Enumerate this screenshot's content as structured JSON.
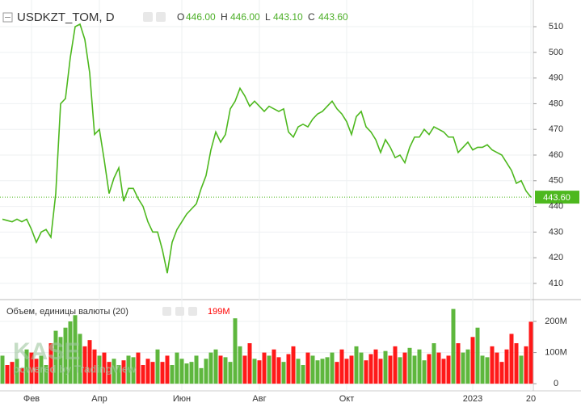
{
  "header": {
    "symbol": "USDKZT_TOM, D",
    "open_label": "O",
    "open": "446.00",
    "high_label": "H",
    "high": "446.00",
    "low_label": "L",
    "low": "443.10",
    "close_label": "C",
    "close": "443.60"
  },
  "watermark": {
    "logo": "KASE",
    "powered": "powered by TradingView"
  },
  "chart_data": [
    {
      "type": "line",
      "color": "#4db81e",
      "last_label": "443.60",
      "categories": [
        null,
        null,
        null,
        null,
        null,
        null,
        "Фев",
        null,
        null,
        null,
        null,
        null,
        null,
        null,
        null,
        null,
        null,
        null,
        null,
        null,
        "Апр",
        null,
        null,
        null,
        null,
        null,
        null,
        null,
        null,
        null,
        null,
        null,
        null,
        null,
        null,
        null,
        null,
        "Июн",
        null,
        null,
        null,
        null,
        null,
        null,
        null,
        null,
        null,
        null,
        null,
        null,
        null,
        null,
        null,
        "Авг",
        null,
        null,
        null,
        null,
        null,
        null,
        null,
        null,
        null,
        null,
        null,
        null,
        null,
        null,
        null,
        null,
        null,
        "Окт",
        null,
        null,
        null,
        null,
        null,
        null,
        null,
        null,
        null,
        null,
        null,
        null,
        null,
        null,
        null,
        null,
        null,
        null,
        null,
        null,
        null,
        null,
        null,
        null,
        null,
        "2023",
        null,
        null,
        null,
        null,
        null,
        null,
        null,
        null,
        null,
        null,
        null,
        "20"
      ],
      "values": [
        435,
        434.5,
        434,
        435,
        434,
        435,
        431,
        426,
        430,
        431,
        428,
        445,
        480,
        482,
        498,
        510,
        511,
        505,
        492,
        468,
        470,
        458,
        445,
        451,
        455,
        442,
        447,
        447,
        443,
        440,
        434,
        430,
        430,
        423,
        414,
        426,
        431,
        434,
        437,
        439,
        441,
        447,
        452,
        462,
        469,
        465,
        468,
        478,
        481,
        486,
        483,
        479,
        481,
        479,
        477,
        479,
        478,
        477,
        478,
        469,
        467,
        471,
        472,
        471,
        474,
        476,
        477,
        479,
        481,
        478,
        476,
        473,
        468,
        475,
        477,
        471,
        469,
        466,
        461,
        466,
        463,
        459,
        460,
        457,
        463,
        467,
        467,
        470,
        468,
        471,
        470,
        469,
        467,
        467,
        461,
        463,
        465,
        462,
        463,
        463,
        464,
        462,
        461,
        460,
        457,
        454,
        449,
        450,
        446,
        443.6
      ],
      "ylim": [
        404,
        520.4
      ],
      "yticks": [
        410,
        420,
        430,
        440,
        450,
        460,
        470,
        480,
        490,
        500,
        510
      ],
      "grid": true
    },
    {
      "type": "bar",
      "title": "Объем, единицы валюты (20)",
      "last_label": "199M",
      "up_color": "#4caf28",
      "down_color": "#ff0000",
      "values": [
        90,
        60,
        70,
        80,
        50,
        110,
        100,
        80,
        90,
        60,
        130,
        170,
        150,
        180,
        200,
        220,
        160,
        120,
        140,
        110,
        90,
        100,
        70,
        80,
        60,
        75,
        90,
        85,
        100,
        60,
        80,
        70,
        110,
        70,
        90,
        60,
        100,
        80,
        65,
        70,
        90,
        50,
        80,
        100,
        110,
        90,
        85,
        70,
        210,
        120,
        90,
        130,
        80,
        75,
        100,
        90,
        110,
        85,
        70,
        95,
        120,
        80,
        60,
        100,
        90,
        75,
        80,
        85,
        100,
        70,
        110,
        80,
        90,
        120,
        100,
        75,
        95,
        110,
        80,
        105,
        90,
        120,
        85,
        100,
        115,
        90,
        110,
        75,
        95,
        130,
        100,
        80,
        90,
        240,
        130,
        100,
        110,
        150,
        180,
        90,
        85,
        120,
        100,
        70,
        110,
        160,
        130,
        90,
        120,
        199
      ],
      "ylim": [
        -23,
        267.5
      ],
      "yticks": [
        0,
        {
          "value": 100,
          "label": "100M"
        },
        {
          "value": 200,
          "label": "200M"
        }
      ]
    }
  ]
}
